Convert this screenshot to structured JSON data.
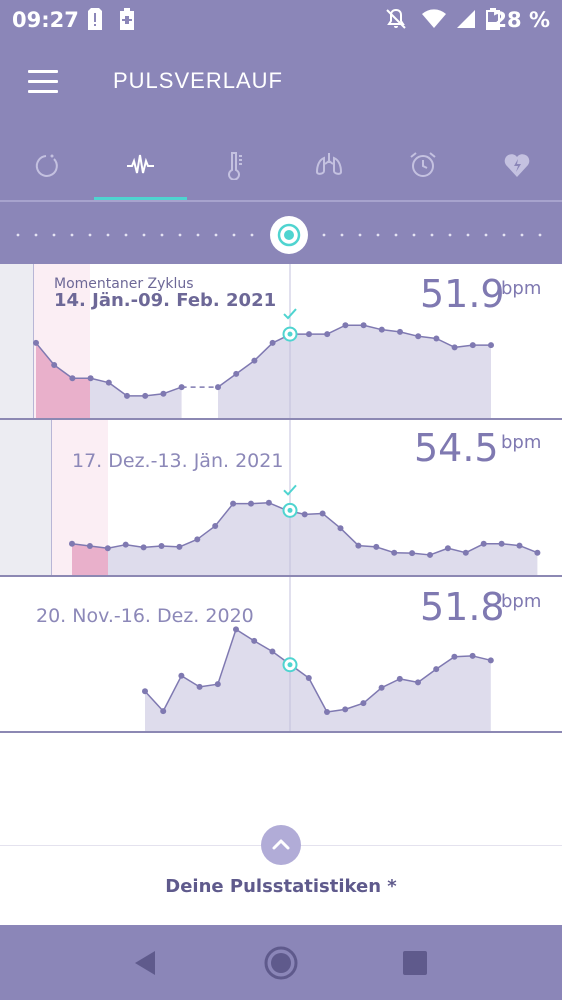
{
  "status_bar": {
    "time": "09:27",
    "battery_percent": "28 %",
    "icons": [
      "sim-alert-icon",
      "battery-charging-icon",
      "notifications-off-icon",
      "wifi-icon",
      "signal-icon",
      "battery-icon"
    ]
  },
  "app_bar": {
    "title": "PULSVERLAUF",
    "menu_icon": "hamburger-menu-icon"
  },
  "tabs": [
    {
      "icon": "cycle-icon",
      "active": false
    },
    {
      "icon": "pulse-icon",
      "active": true
    },
    {
      "icon": "thermometer-icon",
      "active": false
    },
    {
      "icon": "lungs-icon",
      "active": false
    },
    {
      "icon": "alarm-clock-icon",
      "active": false
    },
    {
      "icon": "heart-bolt-icon",
      "active": false
    }
  ],
  "colors": {
    "primary": "#8b86b8",
    "accent": "#4fd4d0",
    "chart_line": "#7f79b1",
    "chart_fill": "#dcd9ea",
    "period_fill": "#e8a5c3"
  },
  "cycles": [
    {
      "caption": "Momentaner Zyklus",
      "dates": "14. Jän.-09. Feb. 2021",
      "value": "51.9",
      "unit": "bpm",
      "current": true,
      "points": [
        62,
        57,
        54,
        54,
        53,
        50,
        50,
        50.5,
        52,
        null,
        52,
        55,
        58,
        62,
        64,
        64,
        64,
        66,
        66,
        65,
        64.5,
        63.5,
        63,
        61,
        61.5,
        61.5
      ]
    },
    {
      "caption": "",
      "dates": "17. Dez.-13. Jän. 2021",
      "value": "54.5",
      "unit": "bpm",
      "current": false,
      "points": [
        52,
        51.5,
        51,
        51.8,
        51.2,
        51.5,
        51.3,
        53,
        56,
        61,
        61,
        61.2,
        59.5,
        58.6,
        58.8,
        55.5,
        51.6,
        51.3,
        50,
        49.9,
        49.5,
        51,
        50,
        52,
        52,
        51.6,
        50
      ]
    },
    {
      "caption": "",
      "dates": "20. Nov.-16. Dez. 2020",
      "value": "51.8",
      "unit": "bpm",
      "current": false,
      "points": [
        54,
        49.5,
        57.5,
        55,
        55.6,
        68,
        65.4,
        63,
        60,
        57,
        49.3,
        49.9,
        51.3,
        54.8,
        56.8,
        56,
        59,
        61.8,
        62,
        61
      ]
    }
  ],
  "stats": {
    "label": "Deine Pulsstatistiken *",
    "toggle_icon": "chevron-up-icon"
  },
  "nav": {
    "back_icon": "back-triangle-icon",
    "home_icon": "home-circle-icon",
    "recents_icon": "recents-square-icon"
  }
}
